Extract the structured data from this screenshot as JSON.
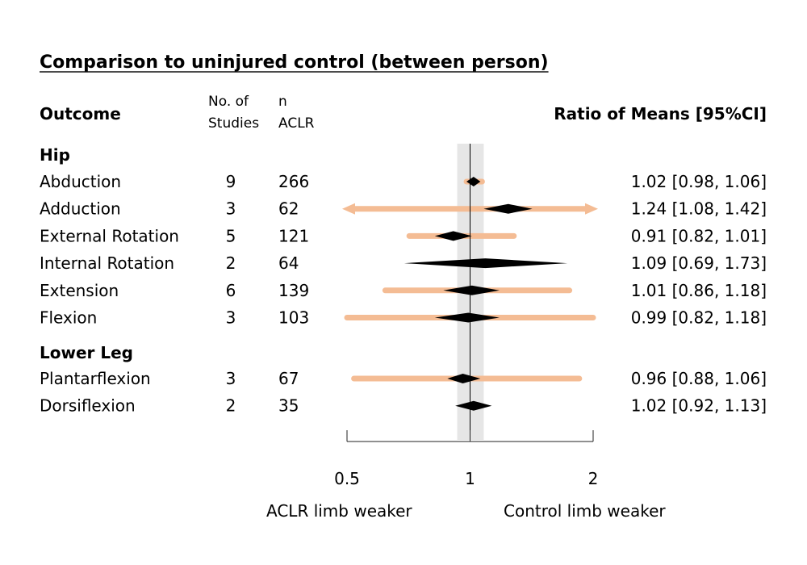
{
  "chart_data": {
    "type": "forest",
    "title": "Comparison to uninjured control (between person)",
    "columns": {
      "outcome": "Outcome",
      "studies": [
        "No. of",
        "Studies"
      ],
      "n": [
        "n",
        "ACLR"
      ],
      "effect": "Ratio of Means [95%CI]"
    },
    "groups": [
      {
        "name": "Hip",
        "rows": [
          {
            "label": "Abduction",
            "studies": "9",
            "n": "266",
            "est": 1.02,
            "lo": 0.98,
            "hi": 1.06,
            "pi_lo": 0.98,
            "pi_hi": 1.07,
            "text": "1.02 [0.98, 1.06]"
          },
          {
            "label": "Adduction",
            "studies": "3",
            "n": "62",
            "est": 1.24,
            "lo": 1.08,
            "hi": 1.42,
            "pi_lo": 0.5,
            "pi_hi": 2.0,
            "pi_arrows": true,
            "text": "1.24 [1.08, 1.42]"
          },
          {
            "label": "External Rotation",
            "studies": "5",
            "n": "121",
            "est": 0.91,
            "lo": 0.82,
            "hi": 1.01,
            "pi_lo": 0.71,
            "pi_hi": 1.28,
            "text": "0.91 [0.82, 1.01]"
          },
          {
            "label": "Internal Rotation",
            "studies": "2",
            "n": "64",
            "est": 1.09,
            "lo": 0.69,
            "hi": 1.73,
            "text": "1.09 [0.69, 1.73]"
          },
          {
            "label": "Extension",
            "studies": "6",
            "n": "139",
            "est": 1.01,
            "lo": 0.86,
            "hi": 1.18,
            "pi_lo": 0.62,
            "pi_hi": 1.75,
            "text": "1.01 [0.86, 1.18]"
          },
          {
            "label": "Flexion",
            "studies": "3",
            "n": "103",
            "est": 0.99,
            "lo": 0.82,
            "hi": 1.18,
            "pi_lo": 0.5,
            "pi_hi": 2.0,
            "text": "0.99 [0.82, 1.18]"
          }
        ]
      },
      {
        "name": "Lower Leg",
        "rows": [
          {
            "label": "Plantarflexion",
            "studies": "3",
            "n": "67",
            "est": 0.96,
            "lo": 0.88,
            "hi": 1.06,
            "pi_lo": 0.52,
            "pi_hi": 1.85,
            "text": "0.96 [0.88, 1.06]"
          },
          {
            "label": "Dorsiflexion",
            "studies": "2",
            "n": "35",
            "est": 1.02,
            "lo": 0.92,
            "hi": 1.13,
            "text": "1.02 [0.92, 1.13]"
          }
        ]
      }
    ],
    "x_scale": "log",
    "xlim": [
      0.5,
      2
    ],
    "ticks": [
      {
        "value": 0.5,
        "label": "0.5"
      },
      {
        "value": 1,
        "label": "1"
      },
      {
        "value": 2,
        "label": "2"
      }
    ],
    "reference_line": 1,
    "shaded_band": [
      0.93,
      1.08
    ],
    "xlabel_left": "ACLR limb weaker",
    "xlabel_right": "Control limb weaker",
    "colors": {
      "prediction_interval": "#f4bc94",
      "diamond": "#000000",
      "band": "#e6e6e6",
      "axis": "#222222"
    }
  }
}
